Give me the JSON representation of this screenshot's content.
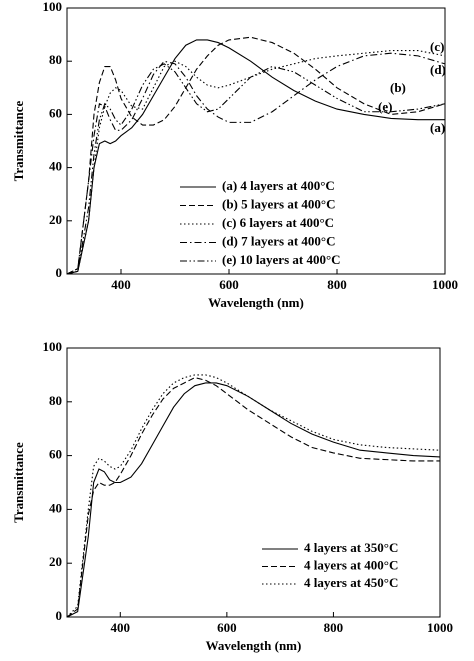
{
  "chart_data": [
    {
      "type": "line",
      "ylabel": "Transmittance",
      "xlabel": "Wavelength (nm)",
      "xlim": [
        300,
        1000
      ],
      "ylim": [
        0,
        100
      ],
      "xticks": [
        400,
        600,
        800,
        1000
      ],
      "yticks": [
        0,
        20,
        40,
        60,
        80,
        100
      ],
      "x": [
        300,
        320,
        340,
        350,
        360,
        370,
        380,
        390,
        400,
        420,
        440,
        460,
        480,
        500,
        520,
        540,
        560,
        580,
        600,
        640,
        680,
        720,
        760,
        800,
        850,
        900,
        950,
        1000
      ],
      "series": [
        {
          "name": "(a) 4 layers at 400°C",
          "color": "#000000",
          "dash": "solid",
          "values": [
            0,
            1,
            20,
            40,
            49,
            50,
            49,
            50,
            52,
            55,
            60,
            67,
            74,
            81,
            86,
            88,
            88,
            87,
            85,
            80,
            74,
            69,
            65,
            62,
            60,
            58.5,
            58,
            58
          ]
        },
        {
          "name": "(b) 5 layers at 400°C",
          "color": "#000000",
          "dash": "dashed",
          "values": [
            0,
            2,
            35,
            60,
            72,
            78,
            78,
            73,
            66,
            59,
            56,
            56,
            58,
            63,
            70,
            77,
            82,
            86,
            88,
            89,
            87,
            83,
            77,
            70,
            64,
            60,
            61,
            64
          ]
        },
        {
          "name": "(c) 6 layers at 400°C",
          "color": "#000000",
          "dash": "dotted",
          "values": [
            0,
            1,
            20,
            40,
            55,
            63,
            68,
            70,
            69,
            63,
            62,
            70,
            78,
            80,
            78,
            74,
            71,
            70,
            71,
            74,
            77,
            79,
            81,
            82,
            83,
            84,
            84,
            82
          ]
        },
        {
          "name": "(d) 7 layers at 400°C",
          "color": "#000000",
          "dash": "dashdot",
          "values": [
            0,
            2,
            35,
            52,
            64,
            63,
            58,
            54,
            54,
            58,
            66,
            75,
            80,
            79,
            74,
            67,
            62,
            59,
            57,
            57,
            61,
            67,
            73,
            78,
            82,
            83,
            82,
            79
          ]
        },
        {
          "name": "(e) 10 layers at 400°C",
          "color": "#000000",
          "dash": "dashdotdot",
          "values": [
            0,
            1,
            25,
            45,
            58,
            64,
            62,
            58,
            56,
            62,
            71,
            77,
            79,
            76,
            70,
            64,
            61,
            62,
            66,
            74,
            78,
            76,
            71,
            66,
            61,
            61,
            62,
            64
          ]
        }
      ],
      "annotations": [
        "(c)",
        "(d)",
        "(b)",
        "(e)",
        "(a)"
      ]
    },
    {
      "type": "line",
      "ylabel": "Transmittance",
      "xlabel": "Wavelength (nm)",
      "xlim": [
        300,
        1000
      ],
      "ylim": [
        0,
        100
      ],
      "xticks": [
        400,
        600,
        800,
        1000
      ],
      "yticks": [
        0,
        20,
        40,
        60,
        80,
        100
      ],
      "x": [
        300,
        320,
        340,
        350,
        360,
        370,
        380,
        390,
        400,
        420,
        440,
        460,
        480,
        500,
        520,
        540,
        560,
        580,
        600,
        640,
        680,
        720,
        760,
        800,
        850,
        900,
        950,
        1000
      ],
      "series": [
        {
          "name": "4 layers at 350°C",
          "color": "#000000",
          "dash": "solid",
          "values": [
            0,
            2,
            30,
            50,
            55,
            54,
            51,
            50,
            50,
            52,
            57,
            64,
            71,
            78,
            83,
            86,
            87,
            87,
            86,
            82,
            77,
            72,
            68,
            65,
            62,
            61,
            60,
            59.5
          ]
        },
        {
          "name": "4 layers at 400°C",
          "color": "#000000",
          "dash": "dashed",
          "values": [
            0,
            3,
            38,
            47,
            50,
            49,
            49,
            50,
            53,
            60,
            68,
            75,
            81,
            85,
            87,
            89,
            88,
            86,
            83,
            77,
            72,
            67,
            63,
            61,
            59,
            58.5,
            58,
            58
          ]
        },
        {
          "name": "4 layers at 450°C",
          "color": "#000000",
          "dash": "dotted",
          "values": [
            0,
            4,
            40,
            56,
            59,
            58,
            56,
            55,
            56,
            62,
            70,
            77,
            83,
            87,
            89,
            90,
            90,
            89,
            87,
            82,
            77,
            73,
            69,
            66,
            64,
            63,
            62.5,
            62
          ]
        }
      ]
    }
  ]
}
